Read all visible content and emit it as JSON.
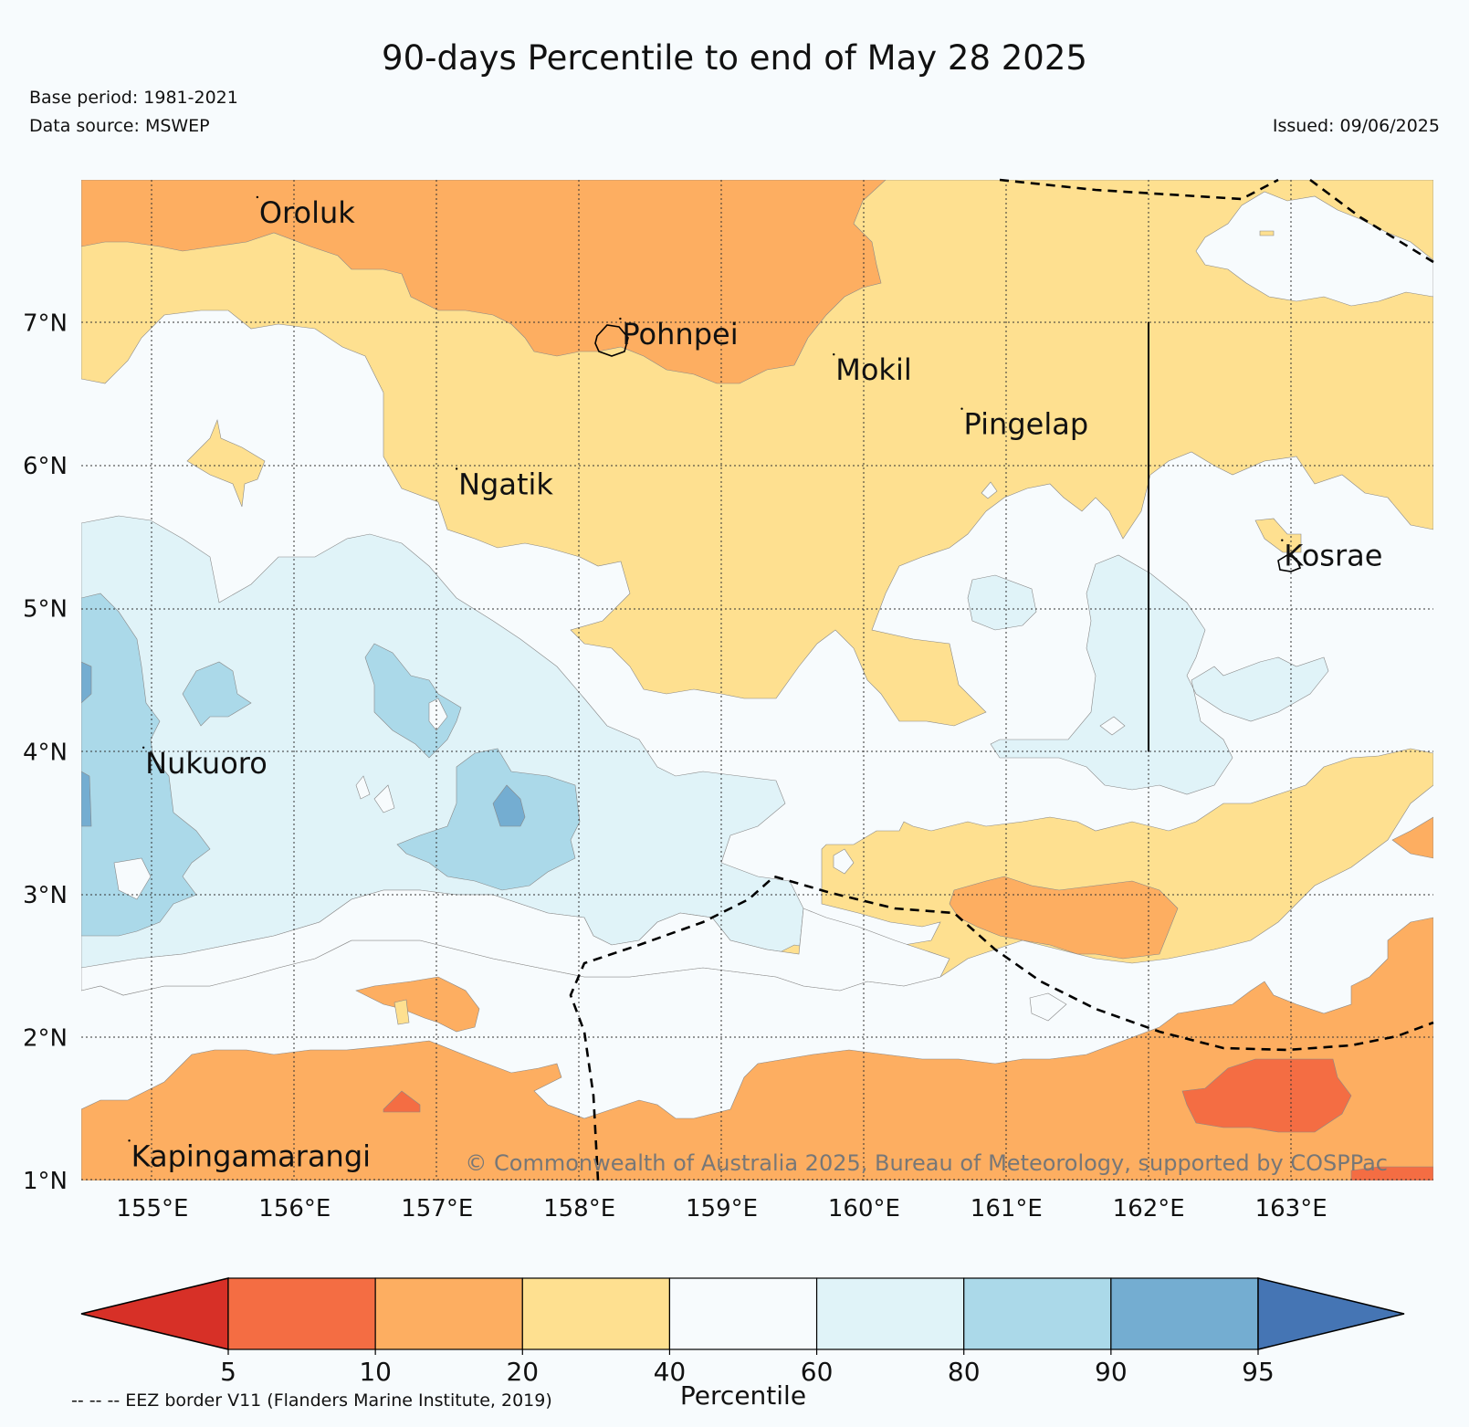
{
  "title": "90-days Percentile to end of May 28 2025",
  "base_period": "Base period: 1981-2021",
  "data_source": "Data source: MSWEP",
  "issued": "Issued: 09/06/2025",
  "copyright": "© Commonwealth of Australia 2025, Bureau of Meteorology, supported by COSPPac",
  "eez_note": "-- -- -- EEZ border V11 (Flanders Marine Institute, 2019)",
  "map": {
    "lon_range": [
      154.5,
      164.0
    ],
    "lat_range": [
      1.0,
      8.0
    ],
    "lon_ticks": [
      {
        "value": 155,
        "label": "155°E"
      },
      {
        "value": 156,
        "label": "156°E"
      },
      {
        "value": 157,
        "label": "157°E"
      },
      {
        "value": 158,
        "label": "158°E"
      },
      {
        "value": 159,
        "label": "159°E"
      },
      {
        "value": 160,
        "label": "160°E"
      },
      {
        "value": 161,
        "label": "161°E"
      },
      {
        "value": 162,
        "label": "162°E"
      },
      {
        "value": 163,
        "label": "163°E"
      }
    ],
    "lat_ticks": [
      {
        "value": 1,
        "label": "1°N"
      },
      {
        "value": 2,
        "label": "2°N"
      },
      {
        "value": 3,
        "label": "3°N"
      },
      {
        "value": 4,
        "label": "4°N"
      },
      {
        "value": 5,
        "label": "5°N"
      },
      {
        "value": 6,
        "label": "6°N"
      },
      {
        "value": 7,
        "label": "7°N"
      }
    ],
    "places": [
      {
        "name": "Oroluk",
        "lon": 155.75,
        "lat": 7.7
      },
      {
        "name": "Pohnpei",
        "lon": 158.3,
        "lat": 6.85
      },
      {
        "name": "Mokil",
        "lon": 159.8,
        "lat": 6.6
      },
      {
        "name": "Pingelap",
        "lon": 160.7,
        "lat": 6.22
      },
      {
        "name": "Ngatik",
        "lon": 157.15,
        "lat": 5.8
      },
      {
        "name": "Kosrae",
        "lon": 162.95,
        "lat": 5.3
      },
      {
        "name": "Nukuoro",
        "lon": 154.95,
        "lat": 3.85
      },
      {
        "name": "Kapingamarangi",
        "lon": 154.85,
        "lat": 1.1
      }
    ],
    "grid": true,
    "background_color": "#f7fbfd"
  },
  "legend": {
    "title": "Percentile",
    "bounds": [
      5,
      10,
      20,
      40,
      60,
      80,
      90,
      95
    ],
    "colors": [
      "#d73027",
      "#f46d43",
      "#fdae61",
      "#fee090",
      "#f7fbfd",
      "#e0f3f8",
      "#abd9e9",
      "#74add1",
      "#4575b4"
    ],
    "extend": "both"
  }
}
